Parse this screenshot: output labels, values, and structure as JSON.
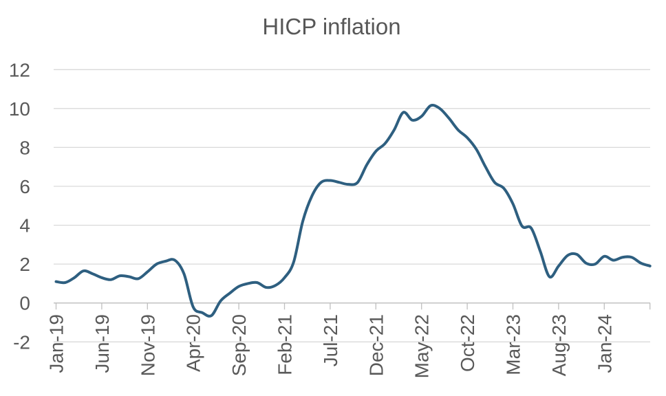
{
  "chart_data": {
    "type": "line",
    "title": "HICP inflation",
    "xlabel": "",
    "ylabel": "",
    "ylim": [
      -2,
      12
    ],
    "y_tick_step": 2,
    "y_tick_labels": [
      "12",
      "10",
      "8",
      "6",
      "4",
      "2",
      "0",
      "-2"
    ],
    "x_tick_labels": [
      "Jan-19",
      "Jun-19",
      "Nov-19",
      "Apr-20",
      "Sep-20",
      "Feb-21",
      "Jul-21",
      "Dec-21",
      "May-22",
      "Oct-22",
      "Mar-23",
      "Aug-23",
      "Jan-24"
    ],
    "grid": true,
    "legend_position": "none",
    "frequency": "monthly",
    "x": [
      "Jan-19",
      "Feb-19",
      "Mar-19",
      "Apr-19",
      "May-19",
      "Jun-19",
      "Jul-19",
      "Aug-19",
      "Sep-19",
      "Oct-19",
      "Nov-19",
      "Dec-19",
      "Jan-20",
      "Feb-20",
      "Mar-20",
      "Apr-20",
      "May-20",
      "Jun-20",
      "Jul-20",
      "Aug-20",
      "Sep-20",
      "Oct-20",
      "Nov-20",
      "Dec-20",
      "Jan-21",
      "Feb-21",
      "Mar-21",
      "Apr-21",
      "May-21",
      "Jun-21",
      "Jul-21",
      "Aug-21",
      "Sep-21",
      "Oct-21",
      "Nov-21",
      "Dec-21",
      "Jan-22",
      "Feb-22",
      "Mar-22",
      "Apr-22",
      "May-22",
      "Jun-22",
      "Jul-22",
      "Aug-22",
      "Sep-22",
      "Oct-22",
      "Nov-22",
      "Dec-22",
      "Jan-23",
      "Feb-23",
      "Mar-23",
      "Apr-23",
      "May-23",
      "Jun-23",
      "Jul-23",
      "Aug-23",
      "Sep-23",
      "Oct-23",
      "Nov-23",
      "Dec-23",
      "Jan-24",
      "Feb-24",
      "Mar-24",
      "Apr-24",
      "May-24",
      "Jun-24"
    ],
    "series": [
      {
        "name": "HICP inflation",
        "values": [
          1.1,
          1.05,
          1.3,
          1.65,
          1.5,
          1.3,
          1.2,
          1.4,
          1.35,
          1.25,
          1.6,
          2.0,
          2.15,
          2.2,
          1.5,
          -0.2,
          -0.5,
          -0.65,
          0.1,
          0.5,
          0.85,
          1.0,
          1.05,
          0.8,
          0.9,
          1.3,
          2.1,
          4.2,
          5.5,
          6.2,
          6.3,
          6.2,
          6.1,
          6.2,
          7.1,
          7.8,
          8.2,
          8.9,
          9.8,
          9.4,
          9.6,
          10.15,
          10.0,
          9.5,
          8.9,
          8.5,
          7.9,
          7.0,
          6.2,
          5.9,
          5.1,
          3.95,
          3.85,
          2.65,
          1.35,
          1.9,
          2.45,
          2.5,
          2.05,
          2.0,
          2.4,
          2.2,
          2.35,
          2.35,
          2.05,
          1.9
        ]
      }
    ],
    "colors": {
      "line": "#2E5F80",
      "gridline": "#D9D9D9",
      "axis_line": "#BFBFBF",
      "tick_text": "#595959",
      "title_text": "#575757",
      "background": "#FFFFFF"
    }
  }
}
